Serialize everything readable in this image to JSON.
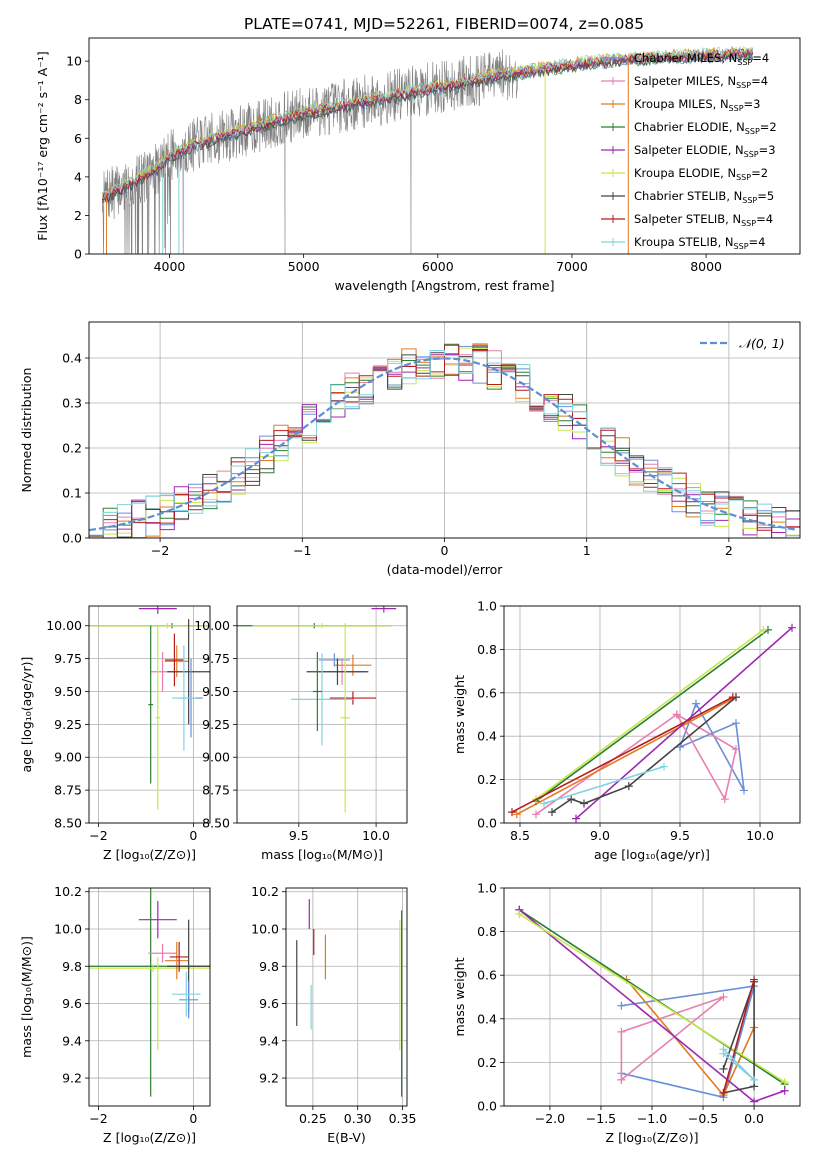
{
  "figure_title": "PLATE=0741, MJD=52261, FIBERID=0074, z=0.085",
  "models": [
    {
      "name": "Chabrier MILES, N",
      "sub": "SSP",
      "tail": "=4",
      "color": "#6a8fd8"
    },
    {
      "name": "Salpeter MILES, N",
      "sub": "SSP",
      "tail": "=4",
      "color": "#e87fb0"
    },
    {
      "name": "Kroupa MILES, N",
      "sub": "SSP",
      "tail": "=3",
      "color": "#e07a20"
    },
    {
      "name": "Chabrier ELODIE, N",
      "sub": "SSP",
      "tail": "=2",
      "color": "#2e7d32"
    },
    {
      "name": "Salpeter ELODIE, N",
      "sub": "SSP",
      "tail": "=3",
      "color": "#9c27b0"
    },
    {
      "name": "Kroupa ELODIE, N",
      "sub": "SSP",
      "tail": "=2",
      "color": "#c6e84a"
    },
    {
      "name": "Chabrier STELIB, N",
      "sub": "SSP",
      "tail": "=5",
      "color": "#444444"
    },
    {
      "name": "Salpeter STELIB, N",
      "sub": "SSP",
      "tail": "=4",
      "color": "#b71c1c"
    },
    {
      "name": "Kroupa STELIB, N",
      "sub": "SSP",
      "tail": "=4",
      "color": "#7fd3e0"
    }
  ],
  "chart_data": [
    {
      "id": "spectrum",
      "type": "line",
      "xlabel": "wavelength [Angstrom, rest frame]",
      "ylabel": "Flux [fλ10⁻¹⁷ erg cm⁻² s⁻¹ A⁻¹]",
      "xlim": [
        3400,
        8700
      ],
      "ylim": [
        0,
        11.2
      ],
      "xticks": [
        4000,
        5000,
        6000,
        7000,
        8000
      ],
      "yticks": [
        0,
        2,
        4,
        6,
        8,
        10
      ],
      "data_color": "#808080",
      "continuum": [
        [
          3500,
          2.9
        ],
        [
          3700,
          3.6
        ],
        [
          3900,
          4.4
        ],
        [
          4000,
          5.1
        ],
        [
          4200,
          5.7
        ],
        [
          4500,
          6.3
        ],
        [
          4800,
          6.9
        ],
        [
          5000,
          7.3
        ],
        [
          5300,
          7.7
        ],
        [
          5600,
          8.1
        ],
        [
          5900,
          8.5
        ],
        [
          6200,
          8.9
        ],
        [
          6500,
          9.3
        ],
        [
          6800,
          9.6
        ],
        [
          7100,
          9.9
        ],
        [
          7400,
          10.1
        ],
        [
          7700,
          10.2
        ],
        [
          8000,
          10.3
        ],
        [
          8300,
          10.4
        ]
      ],
      "grid": false,
      "legend": "upper-right"
    },
    {
      "id": "residuals",
      "type": "histogram",
      "xlabel": "(data-model)/error",
      "ylabel": "Normed distribution",
      "xlim": [
        -2.5,
        2.5
      ],
      "ylim": [
        0,
        0.48
      ],
      "xticks": [
        -2,
        -1,
        0,
        1,
        2
      ],
      "yticks": [
        0.0,
        0.1,
        0.2,
        0.3,
        0.4
      ],
      "bin_width": 0.1,
      "gaussian_label": "𝒩(0, 1)",
      "gaussian_color": "#5b8fd6",
      "grid": true,
      "legend": "upper-right"
    },
    {
      "id": "age-vs-Z",
      "type": "errorbar",
      "xlabel": "Z [log₁₀(Z/Z⊙)]",
      "ylabel": "age  [log₁₀(age/yr)]",
      "xlim": [
        -2.2,
        0.35
      ],
      "ylim": [
        8.5,
        10.15
      ],
      "xticks": [
        -2,
        0
      ],
      "yticks": [
        8.5,
        8.75,
        9.0,
        9.25,
        9.5,
        9.75,
        10.0
      ],
      "points": [
        {
          "m": 4,
          "x": -0.75,
          "y": 10.13,
          "xe": 0.4,
          "ye": 0.04
        },
        {
          "m": 3,
          "x": -0.45,
          "y": 10.0,
          "xe": 2.4,
          "ye": 0.02
        },
        {
          "m": 5,
          "x": -0.55,
          "y": 10.0,
          "xe": 2.2,
          "ye": 0.02
        },
        {
          "m": 1,
          "x": -0.65,
          "y": 9.65,
          "xe": 0.25,
          "ye": 0.15
        },
        {
          "m": 2,
          "x": -0.35,
          "y": 9.73,
          "xe": 0.25,
          "ye": 0.12
        },
        {
          "m": 7,
          "x": -0.4,
          "y": 9.74,
          "xe": 0.2,
          "ye": 0.2
        },
        {
          "m": 6,
          "x": -0.1,
          "y": 9.65,
          "xe": 0.45,
          "ye": 0.4
        },
        {
          "m": 0,
          "x": -0.05,
          "y": 9.45,
          "xe": 0.25,
          "ye": 0.3
        },
        {
          "m": 8,
          "x": -0.2,
          "y": 9.45,
          "xe": 0.25,
          "ye": 0.4
        },
        {
          "m": 5,
          "x": -0.75,
          "y": 9.3,
          "xe": 0.05,
          "ye": 0.7
        },
        {
          "m": 3,
          "x": -0.9,
          "y": 9.4,
          "xe": 0.05,
          "ye": 0.6
        }
      ],
      "grid": true
    },
    {
      "id": "age-vs-mass",
      "type": "errorbar",
      "xlabel": "mass [log₁₀(M/M⊙)]",
      "ylabel": "",
      "xlim": [
        9.1,
        10.2
      ],
      "ylim": [
        8.5,
        10.15
      ],
      "xticks": [
        9.5,
        10.0
      ],
      "yticks": [
        8.5,
        8.75,
        9.0,
        9.25,
        9.5,
        9.75,
        10.0
      ],
      "points": [
        {
          "m": 4,
          "x": 10.05,
          "y": 10.13,
          "xe": 0.08,
          "ye": 0.03
        },
        {
          "m": 3,
          "x": 9.6,
          "y": 10.0,
          "xe": 0.5,
          "ye": 0.02
        },
        {
          "m": 5,
          "x": 9.65,
          "y": 10.0,
          "xe": 0.45,
          "ye": 0.02
        },
        {
          "m": 0,
          "x": 9.73,
          "y": 9.74,
          "xe": 0.1,
          "ye": 0.05
        },
        {
          "m": 2,
          "x": 9.85,
          "y": 9.7,
          "xe": 0.12,
          "ye": 0.08
        },
        {
          "m": 1,
          "x": 9.78,
          "y": 9.65,
          "xe": 0.15,
          "ye": 0.1
        },
        {
          "m": 6,
          "x": 9.75,
          "y": 9.65,
          "xe": 0.2,
          "ye": 0.1
        },
        {
          "m": 7,
          "x": 9.85,
          "y": 9.45,
          "xe": 0.15,
          "ye": 0.05
        },
        {
          "m": 8,
          "x": 9.65,
          "y": 9.44,
          "xe": 0.2,
          "ye": 0.35
        },
        {
          "m": 3,
          "x": 9.62,
          "y": 9.5,
          "xe": 0.03,
          "ye": 0.3
        },
        {
          "m": 5,
          "x": 9.8,
          "y": 9.3,
          "xe": 0.03,
          "ye": 0.72
        }
      ],
      "grid": true
    },
    {
      "id": "massweight-vs-age",
      "type": "line",
      "xlabel": "age  [log₁₀(age/yr)]",
      "ylabel": "mass weight",
      "xlim": [
        8.4,
        10.25
      ],
      "ylim": [
        0,
        1.0
      ],
      "xticks": [
        8.5,
        9.0,
        9.5,
        10.0
      ],
      "yticks": [
        0.0,
        0.2,
        0.4,
        0.6,
        0.8,
        1.0
      ],
      "series": [
        {
          "m": 0,
          "x": [
            9.5,
            9.85,
            9.9,
            9.6,
            9.5
          ],
          "y": [
            0.35,
            0.46,
            0.15,
            0.55,
            0.35
          ]
        },
        {
          "m": 1,
          "x": [
            8.6,
            9.48,
            9.78,
            9.85,
            9.48
          ],
          "y": [
            0.04,
            0.5,
            0.11,
            0.34,
            0.5
          ]
        },
        {
          "m": 2,
          "x": [
            8.48,
            9.85
          ],
          "y": [
            0.04,
            0.58
          ]
        },
        {
          "m": 3,
          "x": [
            8.6,
            10.05
          ],
          "y": [
            0.1,
            0.89
          ]
        },
        {
          "m": 4,
          "x": [
            8.85,
            10.2
          ],
          "y": [
            0.02,
            0.9
          ]
        },
        {
          "m": 5,
          "x": [
            8.6,
            10.02
          ],
          "y": [
            0.11,
            0.89
          ]
        },
        {
          "m": 6,
          "x": [
            8.7,
            8.82,
            8.9,
            9.18,
            9.85
          ],
          "y": [
            0.05,
            0.11,
            0.09,
            0.17,
            0.58
          ]
        },
        {
          "m": 7,
          "x": [
            8.45,
            9.83
          ],
          "y": [
            0.05,
            0.58
          ]
        },
        {
          "m": 8,
          "x": [
            8.65,
            9.4
          ],
          "y": [
            0.09,
            0.26
          ]
        }
      ],
      "grid": true
    },
    {
      "id": "mass-vs-Z",
      "type": "errorbar",
      "xlabel": "Z [log₁₀(Z/Z⊙)]",
      "ylabel": "mass [log₁₀(M/M⊙)]",
      "xlim": [
        -2.2,
        0.35
      ],
      "ylim": [
        9.05,
        10.22
      ],
      "xticks": [
        -2,
        0
      ],
      "yticks": [
        9.2,
        9.4,
        9.6,
        9.8,
        10.0,
        10.2
      ],
      "points": [
        {
          "m": 4,
          "x": -0.75,
          "y": 10.05,
          "xe": 0.4,
          "ye": 0.1
        },
        {
          "m": 3,
          "x": -0.9,
          "y": 9.8,
          "xe": 2.4,
          "ye": 0.7
        },
        {
          "m": 5,
          "x": -0.85,
          "y": 9.79,
          "xe": 2.2,
          "ye": 0.02
        },
        {
          "m": 1,
          "x": -0.65,
          "y": 9.87,
          "xe": 0.3,
          "ye": 0.05
        },
        {
          "m": 2,
          "x": -0.35,
          "y": 9.83,
          "xe": 0.25,
          "ye": 0.1
        },
        {
          "m": 7,
          "x": -0.3,
          "y": 9.85,
          "xe": 0.2,
          "ye": 0.08
        },
        {
          "m": 6,
          "x": -0.1,
          "y": 9.8,
          "xe": 0.45,
          "ye": 0.25
        },
        {
          "m": 0,
          "x": -0.1,
          "y": 9.62,
          "xe": 0.2,
          "ye": 0.1
        },
        {
          "m": 8,
          "x": -0.15,
          "y": 9.65,
          "xe": 0.3,
          "ye": 0.12
        },
        {
          "m": 5,
          "x": -0.75,
          "y": 9.6,
          "xe": 0.05,
          "ye": 0.25
        }
      ],
      "grid": true
    },
    {
      "id": "mass-vs-ebv",
      "type": "errorbar",
      "xlabel": "E(B-V)",
      "ylabel": "",
      "xlim": [
        0.22,
        0.355
      ],
      "ylim": [
        9.05,
        10.22
      ],
      "xticks": [
        0.25,
        0.3,
        0.35
      ],
      "yticks": [
        9.2,
        9.4,
        9.6,
        9.8,
        10.0,
        10.2
      ],
      "points": [
        {
          "m": 6,
          "x": 0.232,
          "y": 9.71,
          "xe": 0,
          "ye": 0.23
        },
        {
          "m": 8,
          "x": 0.248,
          "y": 9.58,
          "xe": 0,
          "ye": 0.12
        },
        {
          "m": 4,
          "x": 0.246,
          "y": 10.08,
          "xe": 0,
          "ye": 0.08
        },
        {
          "m": 7,
          "x": 0.251,
          "y": 9.93,
          "xe": 0,
          "ye": 0.07
        },
        {
          "m": 2,
          "x": 0.264,
          "y": 9.85,
          "xe": 0,
          "ye": 0.12
        },
        {
          "m": 5,
          "x": 0.347,
          "y": 9.7,
          "xe": 0,
          "ye": 0.35
        },
        {
          "m": 3,
          "x": 0.349,
          "y": 9.6,
          "xe": 0,
          "ye": 0.5
        }
      ],
      "grid": true
    },
    {
      "id": "massweight-vs-Z",
      "type": "line",
      "xlabel": "Z [log₁₀(Z/Z⊙)]",
      "ylabel": "mass weight",
      "xlim": [
        -2.45,
        0.45
      ],
      "ylim": [
        0,
        1.0
      ],
      "xticks": [
        -2.0,
        -1.5,
        -1.0,
        -0.5,
        0.0
      ],
      "yticks": [
        0.0,
        0.2,
        0.4,
        0.6,
        0.8,
        1.0
      ],
      "series": [
        {
          "m": 0,
          "x": [
            -1.3,
            -0.3,
            0.0,
            -1.3
          ],
          "y": [
            0.15,
            0.04,
            0.55,
            0.46
          ]
        },
        {
          "m": 1,
          "x": [
            -1.3,
            -0.3,
            -1.3,
            -1.3
          ],
          "y": [
            0.12,
            0.5,
            0.34,
            0.12
          ]
        },
        {
          "m": 2,
          "x": [
            -1.25,
            -0.3,
            0.0
          ],
          "y": [
            0.58,
            0.05,
            0.36
          ]
        },
        {
          "m": 3,
          "x": [
            -2.3,
            0.3
          ],
          "y": [
            0.9,
            0.1
          ]
        },
        {
          "m": 4,
          "x": [
            -2.3,
            0.0,
            0.3
          ],
          "y": [
            0.9,
            0.02,
            0.07
          ]
        },
        {
          "m": 5,
          "x": [
            -2.3,
            0.3
          ],
          "y": [
            0.88,
            0.11
          ]
        },
        {
          "m": 6,
          "x": [
            -0.3,
            0.0,
            0.0,
            -0.3
          ],
          "y": [
            0.17,
            0.57,
            0.09,
            0.06
          ]
        },
        {
          "m": 7,
          "x": [
            -0.3,
            0.0
          ],
          "y": [
            0.06,
            0.58
          ]
        },
        {
          "m": 8,
          "x": [
            -0.3,
            0.0,
            -0.3
          ],
          "y": [
            0.26,
            0.12,
            0.24
          ]
        }
      ],
      "grid": true
    }
  ]
}
